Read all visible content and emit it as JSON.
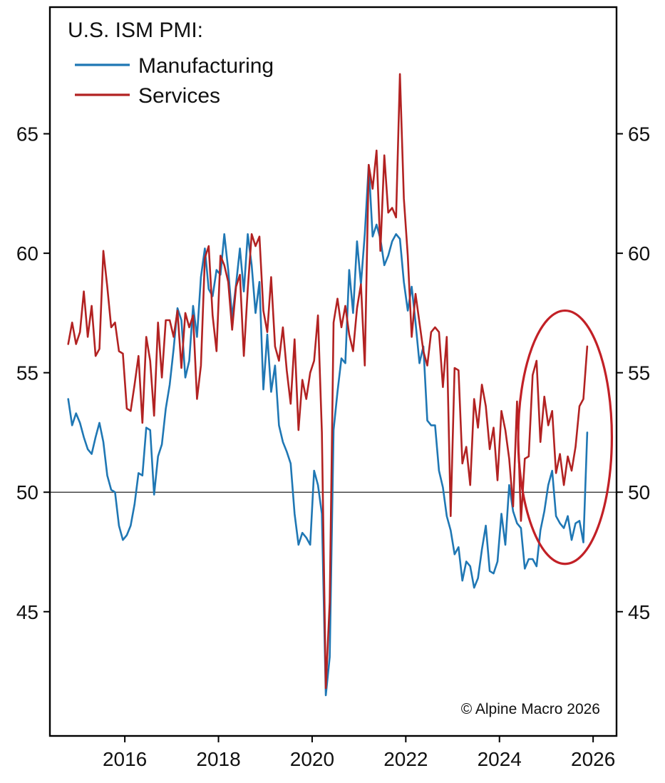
{
  "title": "U.S. ISM PMI:",
  "legend": [
    {
      "label": "Manufacturing",
      "color": "#1f77b4"
    },
    {
      "label": "Services",
      "color": "#b22222"
    }
  ],
  "copyright": "© Alpine Macro 2026",
  "chart_data": {
    "type": "line",
    "title": "U.S. ISM PMI:",
    "xlabel": "",
    "ylabel": "",
    "frequency": "monthly",
    "x_start": {
      "year": 2014,
      "month": 10
    },
    "x_end": {
      "year": 2025,
      "month": 11
    },
    "xlim": [
      2014.4,
      2026.5
    ],
    "ylim": [
      39.8,
      70.3
    ],
    "yticks": [
      45,
      50,
      55,
      60,
      65
    ],
    "xticks": [
      2016,
      2018,
      2020,
      2022,
      2024,
      2026
    ],
    "grid": false,
    "legend_position": "top-left",
    "axis_labels_both_sides": true,
    "reference_line": 50,
    "annotation_ellipse": {
      "cx_year": 2025.4,
      "cy_value": 52.3,
      "rx_years": 1.0,
      "ry_values": 5.3,
      "color": "#c22026"
    },
    "series": [
      {
        "name": "Manufacturing",
        "color": "#1f77b4",
        "values": [
          53.9,
          52.8,
          53.3,
          52.9,
          52.3,
          51.8,
          51.6,
          52.3,
          52.9,
          52.1,
          50.7,
          50.1,
          50.0,
          48.6,
          48.0,
          48.2,
          48.6,
          49.5,
          50.8,
          50.7,
          52.7,
          52.6,
          49.9,
          51.5,
          52.0,
          53.5,
          54.5,
          56.0,
          57.7,
          57.2,
          54.8,
          55.5,
          57.8,
          56.5,
          59.0,
          60.2,
          58.5,
          58.2,
          59.3,
          59.1,
          60.8,
          59.3,
          57.3,
          58.7,
          60.2,
          58.4,
          60.8,
          59.5,
          57.5,
          58.8,
          54.3,
          56.6,
          54.2,
          55.3,
          52.8,
          52.1,
          51.7,
          51.2,
          49.1,
          47.8,
          48.3,
          48.1,
          47.8,
          50.9,
          50.3,
          49.1,
          41.5,
          43.1,
          52.6,
          54.2,
          55.6,
          55.4,
          59.3,
          57.5,
          60.5,
          58.7,
          60.8,
          63.7,
          60.7,
          61.2,
          60.6,
          59.5,
          59.9,
          60.5,
          60.8,
          60.6,
          58.8,
          57.6,
          58.6,
          57.1,
          55.4,
          56.1,
          53.0,
          52.8,
          52.8,
          50.9,
          50.2,
          49.0,
          48.4,
          47.4,
          47.7,
          46.3,
          47.1,
          46.9,
          46.0,
          46.4,
          47.6,
          48.6,
          46.7,
          46.6,
          47.1,
          49.1,
          47.8,
          50.3,
          49.2,
          48.7,
          48.5,
          46.8,
          47.2,
          47.2,
          46.9,
          48.4,
          49.2,
          50.3,
          50.9,
          49.0,
          48.7,
          48.5,
          49.0,
          48.0,
          48.7,
          48.8,
          47.9,
          52.5
        ]
      },
      {
        "name": "Services",
        "color": "#b22222",
        "values": [
          56.2,
          57.1,
          56.2,
          56.7,
          58.4,
          56.5,
          57.8,
          55.7,
          56.0,
          60.1,
          58.6,
          56.9,
          57.1,
          55.9,
          55.8,
          53.5,
          53.4,
          54.5,
          55.7,
          52.9,
          56.5,
          55.5,
          53.2,
          57.1,
          54.8,
          57.2,
          57.2,
          56.5,
          57.6,
          55.2,
          57.5,
          56.9,
          57.4,
          53.9,
          55.3,
          59.8,
          60.3,
          57.4,
          55.9,
          59.9,
          59.5,
          58.8,
          56.8,
          58.6,
          59.1,
          55.7,
          58.5,
          60.8,
          60.3,
          60.7,
          57.6,
          56.7,
          59.0,
          56.1,
          55.5,
          56.9,
          55.1,
          53.7,
          56.4,
          52.6,
          54.7,
          53.9,
          55.0,
          55.5,
          57.4,
          52.5,
          41.8,
          45.4,
          57.1,
          58.1,
          56.9,
          57.8,
          56.6,
          55.9,
          57.7,
          58.7,
          55.3,
          63.7,
          62.7,
          64.3,
          60.1,
          64.1,
          61.7,
          61.9,
          61.5,
          67.5,
          62.3,
          59.9,
          56.5,
          58.3,
          57.1,
          55.9,
          55.3,
          56.7,
          56.9,
          56.7,
          54.4,
          56.5,
          49.0,
          55.2,
          55.1,
          51.2,
          51.9,
          50.3,
          53.9,
          52.7,
          54.5,
          53.6,
          51.8,
          52.7,
          50.5,
          53.4,
          52.6,
          51.4,
          49.4,
          53.8,
          48.8,
          51.4,
          51.5,
          54.9,
          55.5,
          52.1,
          54.0,
          52.8,
          53.4,
          50.8,
          51.6,
          50.3,
          51.5,
          50.9,
          51.9,
          53.6,
          53.9,
          56.1
        ]
      }
    ]
  }
}
